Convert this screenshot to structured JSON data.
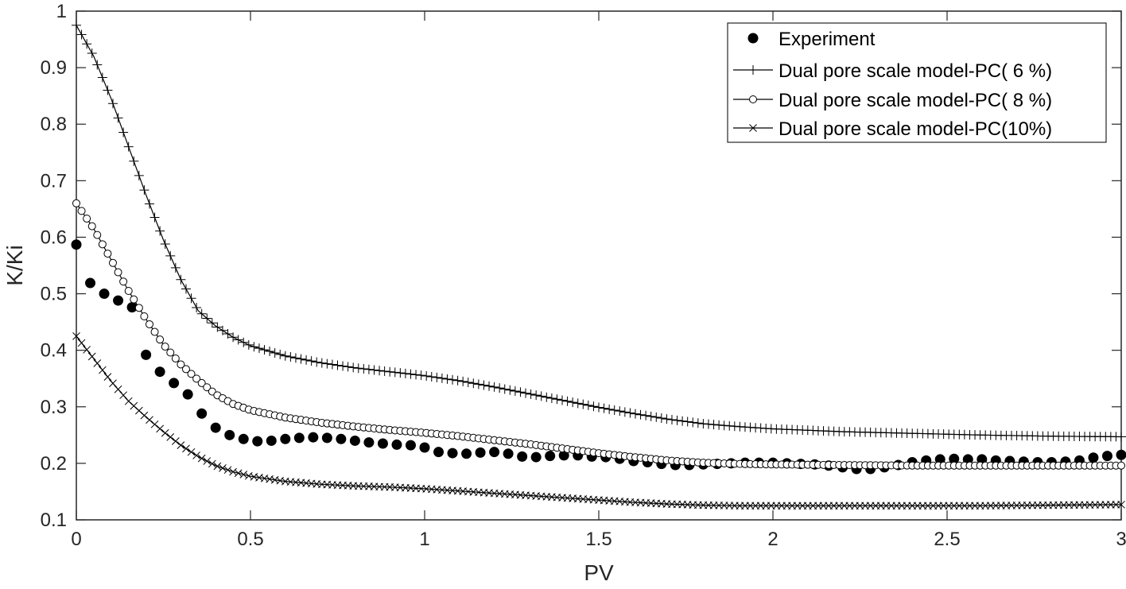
{
  "chart_data": {
    "type": "scatter",
    "xlabel": "PV",
    "ylabel": "K/Ki",
    "xlim": [
      0,
      3
    ],
    "ylim": [
      0.1,
      1
    ],
    "xticks": [
      0,
      0.5,
      1,
      1.5,
      2,
      2.5,
      3
    ],
    "xtick_labels": [
      "0",
      "0.5",
      "1",
      "1.5",
      "2",
      "2.5",
      "3"
    ],
    "yticks": [
      0.1,
      0.2,
      0.3,
      0.4,
      0.5,
      0.6,
      0.7,
      0.8,
      0.9,
      1
    ],
    "ytick_labels": [
      "0.1",
      "0.2",
      "0.3",
      "0.4",
      "0.5",
      "0.6",
      "0.7",
      "0.8",
      "0.9",
      "1"
    ],
    "grid": false,
    "box": true,
    "legend_position": "top-right",
    "series": [
      {
        "name": "Experiment",
        "style": "filled-circle",
        "color": "#000000",
        "x": [
          0.0,
          0.04,
          0.08,
          0.12,
          0.16,
          0.2,
          0.24,
          0.28,
          0.32,
          0.36,
          0.4,
          0.44,
          0.48,
          0.52,
          0.56,
          0.6,
          0.64,
          0.68,
          0.72,
          0.76,
          0.8,
          0.84,
          0.88,
          0.92,
          0.96,
          1.0,
          1.04,
          1.08,
          1.12,
          1.16,
          1.2,
          1.24,
          1.28,
          1.32,
          1.36,
          1.4,
          1.44,
          1.48,
          1.52,
          1.56,
          1.6,
          1.64,
          1.68,
          1.72,
          1.76,
          1.8,
          1.84,
          1.88,
          1.92,
          1.96,
          2.0,
          2.04,
          2.08,
          2.12,
          2.16,
          2.2,
          2.24,
          2.28,
          2.32,
          2.36,
          2.4,
          2.44,
          2.48,
          2.52,
          2.56,
          2.6,
          2.64,
          2.68,
          2.72,
          2.76,
          2.8,
          2.84,
          2.88,
          2.92,
          2.96,
          3.0
        ],
        "y": [
          0.587,
          0.519,
          0.5,
          0.488,
          0.476,
          0.392,
          0.362,
          0.342,
          0.322,
          0.288,
          0.263,
          0.25,
          0.243,
          0.239,
          0.24,
          0.243,
          0.245,
          0.246,
          0.245,
          0.243,
          0.24,
          0.237,
          0.235,
          0.233,
          0.232,
          0.228,
          0.22,
          0.218,
          0.217,
          0.219,
          0.22,
          0.217,
          0.212,
          0.211,
          0.213,
          0.214,
          0.214,
          0.212,
          0.211,
          0.208,
          0.204,
          0.202,
          0.199,
          0.197,
          0.197,
          0.198,
          0.199,
          0.2,
          0.201,
          0.201,
          0.201,
          0.2,
          0.199,
          0.198,
          0.196,
          0.193,
          0.19,
          0.19,
          0.193,
          0.197,
          0.202,
          0.205,
          0.207,
          0.208,
          0.207,
          0.207,
          0.205,
          0.204,
          0.203,
          0.202,
          0.202,
          0.203,
          0.205,
          0.21,
          0.213,
          0.215
        ]
      },
      {
        "name": "Dual pore scale model-PC( 6  %)",
        "style": "line-plus",
        "color": "#000000",
        "x": [
          0.0,
          0.05,
          0.1,
          0.15,
          0.2,
          0.25,
          0.3,
          0.35,
          0.4,
          0.45,
          0.5,
          0.6,
          0.7,
          0.8,
          0.9,
          1.0,
          1.1,
          1.2,
          1.3,
          1.4,
          1.5,
          1.6,
          1.7,
          1.8,
          1.9,
          2.0,
          2.2,
          2.4,
          2.6,
          2.8,
          3.0
        ],
        "y": [
          0.975,
          0.92,
          0.845,
          0.76,
          0.675,
          0.595,
          0.525,
          0.47,
          0.443,
          0.423,
          0.408,
          0.39,
          0.378,
          0.369,
          0.362,
          0.355,
          0.346,
          0.335,
          0.323,
          0.311,
          0.299,
          0.288,
          0.278,
          0.27,
          0.265,
          0.261,
          0.256,
          0.253,
          0.25,
          0.248,
          0.247
        ]
      },
      {
        "name": "Dual pore scale model-PC( 8  %)",
        "style": "line-open-circle",
        "color": "#000000",
        "x": [
          0.0,
          0.05,
          0.1,
          0.15,
          0.2,
          0.25,
          0.3,
          0.35,
          0.4,
          0.45,
          0.5,
          0.6,
          0.7,
          0.8,
          0.9,
          1.0,
          1.1,
          1.2,
          1.3,
          1.4,
          1.5,
          1.6,
          1.7,
          1.8,
          1.9,
          2.0,
          2.2,
          2.4,
          2.6,
          2.8,
          3.0
        ],
        "y": [
          0.66,
          0.615,
          0.56,
          0.505,
          0.455,
          0.41,
          0.375,
          0.347,
          0.322,
          0.305,
          0.294,
          0.281,
          0.272,
          0.265,
          0.259,
          0.254,
          0.248,
          0.241,
          0.234,
          0.226,
          0.218,
          0.211,
          0.205,
          0.201,
          0.199,
          0.198,
          0.197,
          0.196,
          0.196,
          0.196,
          0.196
        ]
      },
      {
        "name": "Dual pore scale model-PC(10%)",
        "style": "line-cross",
        "color": "#000000",
        "x": [
          0.0,
          0.05,
          0.1,
          0.15,
          0.2,
          0.25,
          0.3,
          0.35,
          0.4,
          0.45,
          0.5,
          0.6,
          0.7,
          0.8,
          0.9,
          1.0,
          1.1,
          1.2,
          1.3,
          1.4,
          1.5,
          1.6,
          1.7,
          1.8,
          1.9,
          2.0,
          2.2,
          2.4,
          2.6,
          2.8,
          3.0
        ],
        "y": [
          0.425,
          0.385,
          0.345,
          0.31,
          0.282,
          0.256,
          0.232,
          0.212,
          0.196,
          0.185,
          0.177,
          0.168,
          0.163,
          0.16,
          0.158,
          0.155,
          0.151,
          0.147,
          0.143,
          0.139,
          0.135,
          0.131,
          0.128,
          0.126,
          0.125,
          0.125,
          0.125,
          0.125,
          0.125,
          0.126,
          0.127
        ]
      }
    ]
  }
}
